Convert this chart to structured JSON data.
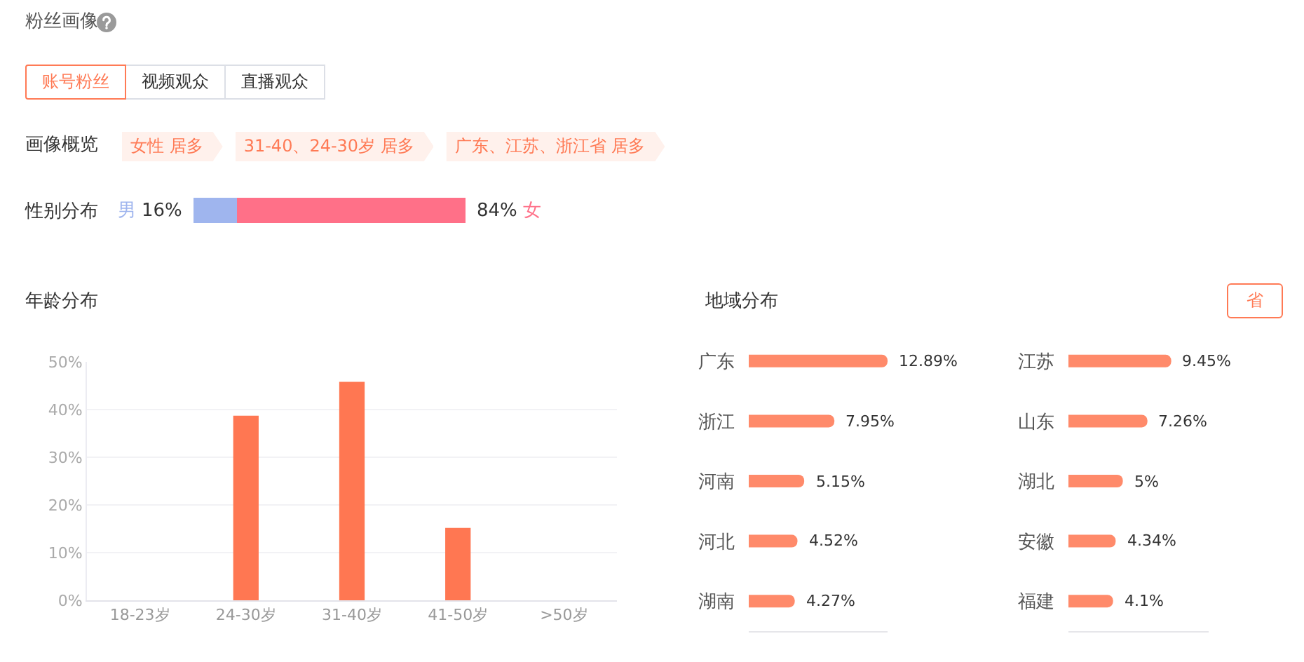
{
  "chart_data": [
    {
      "type": "other",
      "title": "粉丝画像",
      "annotations": [
        "账号粉丝",
        "视频观众",
        "直播观众",
        "画像概览",
        "女性 居多",
        "31-40、24-30岁 居多",
        "广东、江苏、浙江省 居多"
      ]
    },
    {
      "type": "bar",
      "title": "性别分布",
      "orientation": "horizontal",
      "stacked": true,
      "categories": [
        null
      ],
      "series": [
        {
          "name": "男",
          "color": "#9fb5ee",
          "values": [
            16
          ],
          "value_labels": [
            "16%"
          ]
        },
        {
          "name": "女",
          "color": "#ff7088",
          "values": [
            84
          ],
          "value_labels": [
            "84%"
          ]
        }
      ],
      "tick_labels": false
    },
    {
      "type": "bar",
      "title": "年龄分布",
      "categories": [
        "18-23岁",
        "24-30岁",
        "31-40岁",
        "41-50岁",
        ">50岁"
      ],
      "values": [
        0,
        38.7,
        45.8,
        15.2,
        0
      ],
      "color": "#ff7752",
      "ylim": [
        0,
        50
      ],
      "yticks": [
        {
          "value": 0,
          "label": "0%"
        },
        {
          "value": 10,
          "label": "10%"
        },
        {
          "value": 20,
          "label": "20%"
        },
        {
          "value": 30,
          "label": "30%"
        },
        {
          "value": 40,
          "label": "40%"
        },
        {
          "value": 50,
          "label": "50%"
        }
      ],
      "grid": "y"
    },
    {
      "type": "bar",
      "title": "地域分布",
      "orientation": "horizontal",
      "categories": [
        "广东",
        "浙江",
        "河南",
        "河北",
        "湖南"
      ],
      "values": [
        12.89,
        7.95,
        5.15,
        4.52,
        4.27
      ],
      "value_labels": [
        "12.89%",
        "7.95%",
        "5.15%",
        "4.52%",
        "4.27%"
      ],
      "color": "#ff8a6a",
      "xlim": [
        0,
        12.89
      ],
      "tick_labels": "y"
    },
    {
      "type": "bar",
      "orientation": "horizontal",
      "categories": [
        "江苏",
        "山东",
        "湖北",
        "安徽",
        "福建"
      ],
      "values": [
        9.45,
        7.26,
        5,
        4.34,
        4.1
      ],
      "value_labels": [
        "9.45%",
        "7.26%",
        "5%",
        "4.34%",
        "4.1%"
      ],
      "color": "#ff8a6a",
      "xlim": [
        0,
        12.89
      ],
      "tick_labels": "y",
      "annotations": [
        "省"
      ]
    }
  ]
}
